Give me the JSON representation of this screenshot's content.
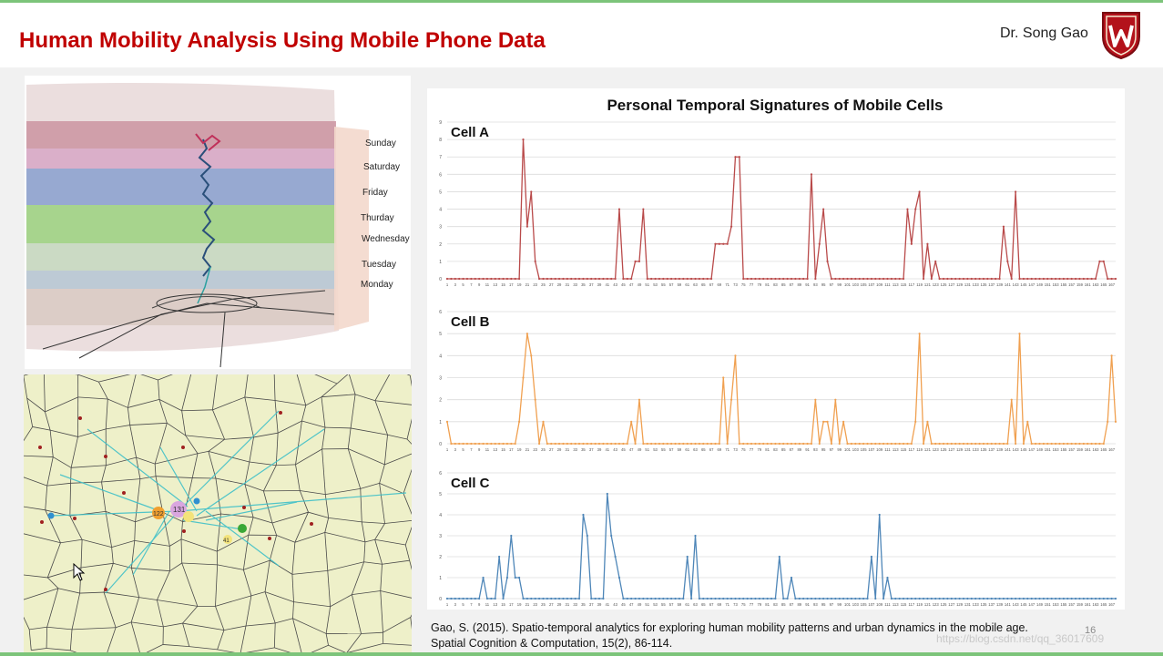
{
  "slide": {
    "title": "Human Mobility Analysis Using Mobile Phone Data",
    "author": "Dr. Song Gao",
    "page_number": "16",
    "citation_line1": "Gao, S. (2015). Spatio-temporal analytics for exploring human mobility patterns and urban dynamics in the mobile age.",
    "citation_line2": "Spatial Cognition & Computation, 15(2), 86-114.",
    "watermark": "https://blog.csdn.net/qq_36017609"
  },
  "cube": {
    "days": [
      "Sunday",
      "Saturday",
      "Friday",
      "Thurday",
      "Wednesday",
      "Tuesday",
      "Monday"
    ]
  },
  "map": {
    "labels": [
      "122",
      "131",
      "41"
    ]
  },
  "chart_data": {
    "type": "line",
    "title": "Personal Temporal Signatures of Mobile Cells",
    "x": {
      "min": 1,
      "max": 168,
      "tick_step": 2
    },
    "panels": [
      {
        "name": "Cell A",
        "color": "#b94a4a",
        "ylim": [
          0,
          9
        ],
        "yticks": [
          0,
          1,
          2,
          3,
          4,
          5,
          6,
          7,
          8,
          9
        ],
        "peaks": [
          [
            19,
            0
          ],
          [
            20,
            8
          ],
          [
            21,
            3
          ],
          [
            22,
            5
          ],
          [
            23,
            1
          ],
          [
            24,
            0
          ],
          [
            43,
            0
          ],
          [
            44,
            4
          ],
          [
            45,
            0
          ],
          [
            46,
            0
          ],
          [
            47,
            0
          ],
          [
            48,
            1
          ],
          [
            49,
            1
          ],
          [
            50,
            4
          ],
          [
            51,
            0
          ],
          [
            67,
            0
          ],
          [
            68,
            2
          ],
          [
            69,
            2
          ],
          [
            70,
            2
          ],
          [
            71,
            2
          ],
          [
            72,
            3
          ],
          [
            73,
            7
          ],
          [
            74,
            7
          ],
          [
            75,
            0
          ],
          [
            91,
            0
          ],
          [
            92,
            6
          ],
          [
            93,
            0
          ],
          [
            94,
            2
          ],
          [
            95,
            4
          ],
          [
            96,
            1
          ],
          [
            97,
            0
          ],
          [
            115,
            0
          ],
          [
            116,
            4
          ],
          [
            117,
            2
          ],
          [
            118,
            4
          ],
          [
            119,
            5
          ],
          [
            120,
            0
          ],
          [
            121,
            2
          ],
          [
            122,
            0
          ],
          [
            123,
            1
          ],
          [
            124,
            0
          ],
          [
            139,
            0
          ],
          [
            140,
            3
          ],
          [
            141,
            1
          ],
          [
            142,
            0
          ],
          [
            143,
            5
          ],
          [
            144,
            0
          ],
          [
            163,
            0
          ],
          [
            164,
            1
          ],
          [
            165,
            1
          ],
          [
            166,
            0
          ]
        ]
      },
      {
        "name": "Cell B",
        "color": "#f0a050",
        "ylim": [
          0,
          6
        ],
        "yticks": [
          0,
          1,
          2,
          3,
          4,
          5,
          6
        ],
        "peaks": [
          [
            1,
            1
          ],
          [
            2,
            0
          ],
          [
            18,
            0
          ],
          [
            19,
            1
          ],
          [
            20,
            3
          ],
          [
            21,
            5
          ],
          [
            22,
            4
          ],
          [
            23,
            2
          ],
          [
            24,
            0
          ],
          [
            25,
            1
          ],
          [
            26,
            0
          ],
          [
            46,
            0
          ],
          [
            47,
            1
          ],
          [
            48,
            0
          ],
          [
            49,
            2
          ],
          [
            50,
            0
          ],
          [
            69,
            0
          ],
          [
            70,
            3
          ],
          [
            71,
            0
          ],
          [
            72,
            2
          ],
          [
            73,
            4
          ],
          [
            74,
            0
          ],
          [
            92,
            0
          ],
          [
            93,
            2
          ],
          [
            94,
            0
          ],
          [
            95,
            1
          ],
          [
            96,
            1
          ],
          [
            97,
            0
          ],
          [
            98,
            2
          ],
          [
            99,
            0
          ],
          [
            100,
            1
          ],
          [
            101,
            0
          ],
          [
            117,
            0
          ],
          [
            118,
            1
          ],
          [
            119,
            5
          ],
          [
            120,
            0
          ],
          [
            121,
            1
          ],
          [
            122,
            0
          ],
          [
            141,
            0
          ],
          [
            142,
            2
          ],
          [
            143,
            0
          ],
          [
            144,
            5
          ],
          [
            145,
            0
          ],
          [
            146,
            1
          ],
          [
            147,
            0
          ],
          [
            165,
            0
          ],
          [
            166,
            1
          ],
          [
            167,
            4
          ],
          [
            168,
            1
          ]
        ]
      },
      {
        "name": "Cell C",
        "color": "#4e86b8",
        "ylim": [
          0,
          6
        ],
        "yticks": [
          0,
          1,
          2,
          3,
          4,
          5,
          6
        ],
        "peaks": [
          [
            9,
            0
          ],
          [
            10,
            1
          ],
          [
            11,
            0
          ],
          [
            13,
            0
          ],
          [
            14,
            2
          ],
          [
            15,
            0
          ],
          [
            16,
            1
          ],
          [
            17,
            3
          ],
          [
            18,
            1
          ],
          [
            19,
            1
          ],
          [
            20,
            0
          ],
          [
            34,
            0
          ],
          [
            35,
            4
          ],
          [
            36,
            3
          ],
          [
            37,
            0
          ],
          [
            40,
            0
          ],
          [
            41,
            5
          ],
          [
            42,
            3
          ],
          [
            43,
            2
          ],
          [
            44,
            1
          ],
          [
            45,
            0
          ],
          [
            60,
            0
          ],
          [
            61,
            2
          ],
          [
            62,
            0
          ],
          [
            63,
            3
          ],
          [
            64,
            0
          ],
          [
            83,
            0
          ],
          [
            84,
            2
          ],
          [
            85,
            0
          ],
          [
            86,
            0
          ],
          [
            87,
            1
          ],
          [
            88,
            0
          ],
          [
            106,
            0
          ],
          [
            107,
            2
          ],
          [
            108,
            0
          ],
          [
            109,
            4
          ],
          [
            110,
            0
          ],
          [
            111,
            1
          ],
          [
            112,
            0
          ]
        ]
      }
    ]
  }
}
